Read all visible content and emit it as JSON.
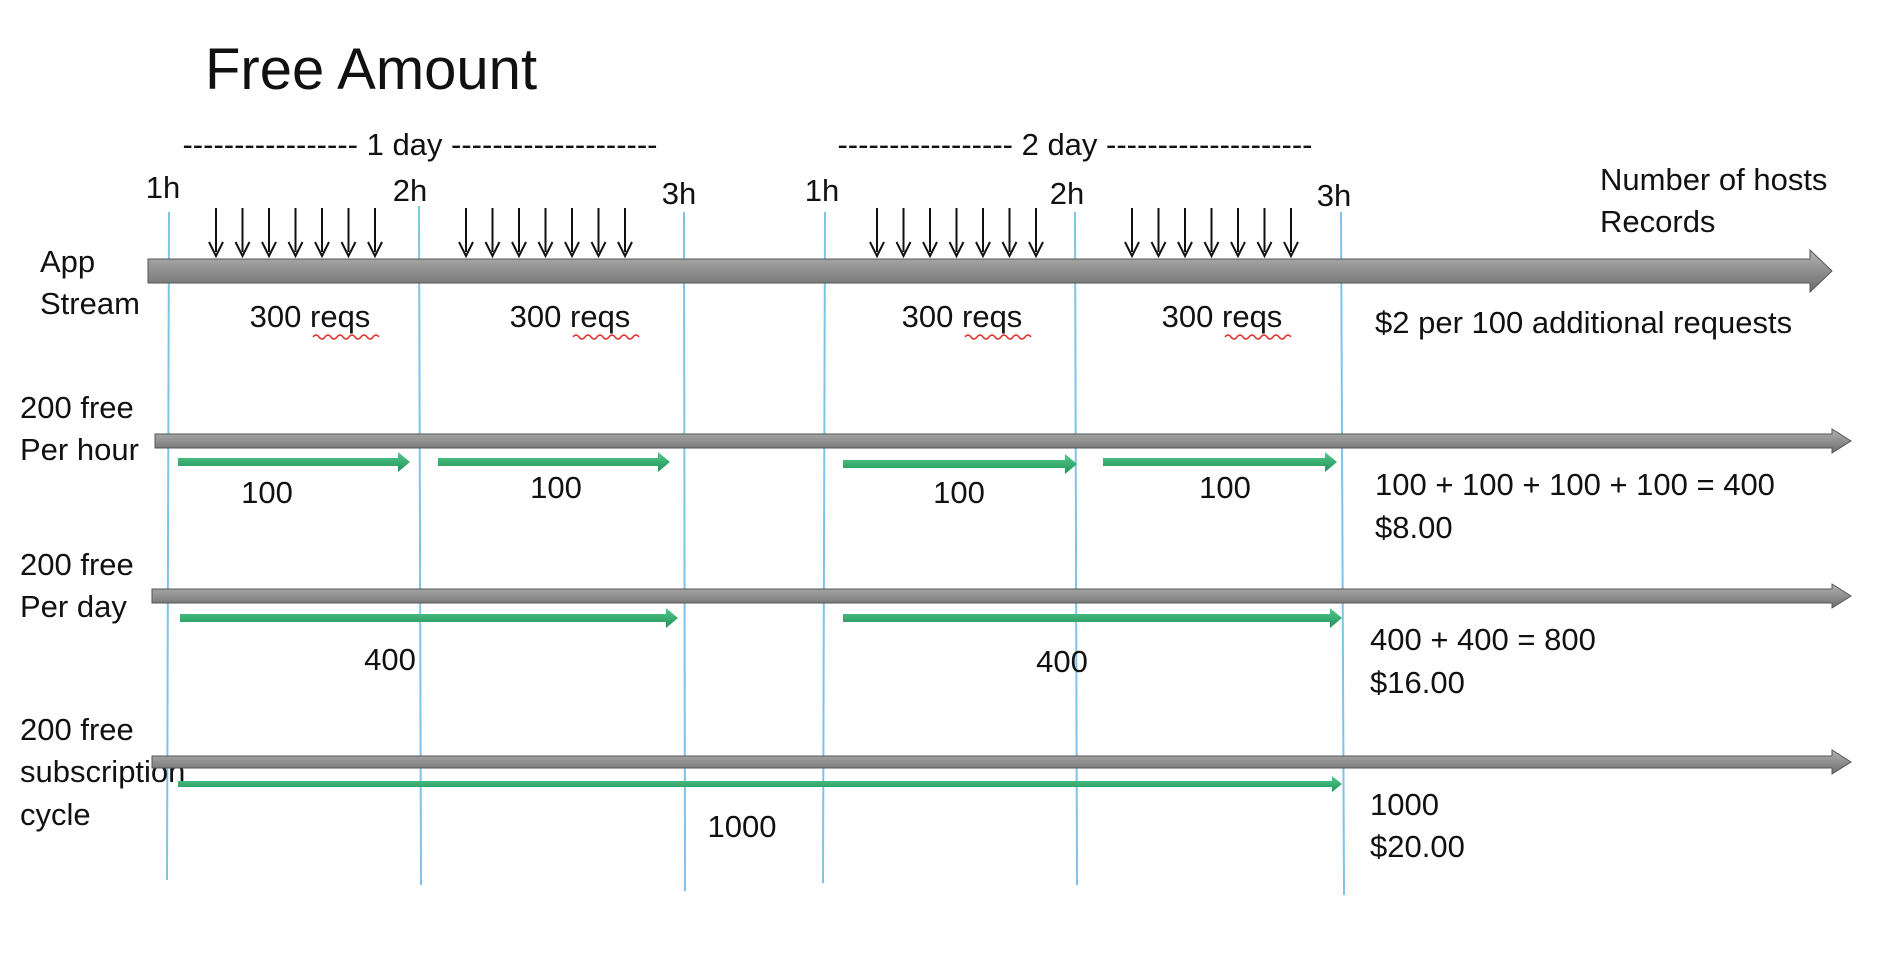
{
  "title": "Free Amount",
  "colors": {
    "timeline": "#8f8f8f",
    "timeline_edge": "#555555",
    "allowance_arrow": "#2aa86a",
    "hour_marker": "#7fc3e8",
    "request_arrow": "#111111"
  },
  "periods": [
    {
      "label": "----------------- 1 day --------------------",
      "ticks": [
        "1h",
        "2h",
        "3h"
      ]
    },
    {
      "label": "----------------- 2 day --------------------",
      "ticks": [
        "1h",
        "2h",
        "3h"
      ]
    }
  ],
  "stream": {
    "label_lines": [
      "App",
      "Stream"
    ],
    "legend_lines": [
      "Number of hosts",
      "Records"
    ],
    "request_icon": "down-arrow-icon",
    "requests_per_hour": 7,
    "hour_requests": [
      "300 reqs",
      "300 reqs",
      "300 reqs",
      "300 reqs"
    ],
    "pricing_note": "$2 per 100 additional requests"
  },
  "plans": [
    {
      "label_lines": [
        "200 free",
        "Per hour"
      ],
      "allowances": [
        "100",
        "100",
        "100",
        "100"
      ],
      "result_lines": [
        "100 + 100 + 100 + 100 = 400",
        "$8.00"
      ]
    },
    {
      "label_lines": [
        "200 free",
        "Per day"
      ],
      "allowances": [
        "400",
        "400"
      ],
      "result_lines": [
        "400 + 400 = 800",
        "$16.00"
      ]
    },
    {
      "label_lines": [
        "200 free",
        "subscription",
        "cycle"
      ],
      "allowances": [
        "1000"
      ],
      "result_lines": [
        "1000",
        "$20.00"
      ]
    }
  ]
}
